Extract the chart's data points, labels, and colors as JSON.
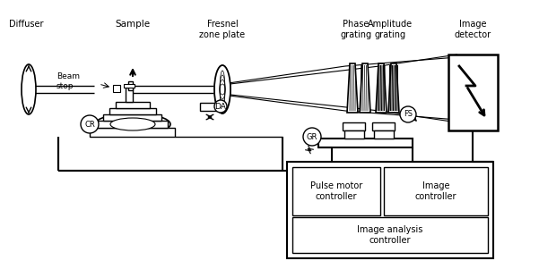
{
  "figsize": [
    6.01,
    3.01
  ],
  "dpi": 100,
  "bg_color": "#f0f0f0",
  "labels": {
    "diffuser": "Diffuser",
    "sample": "Sample",
    "fresnel": "Fresnel\nzone plate",
    "phase": "Phase\ngrating",
    "amplitude": "Amplitude\ngrating",
    "image_detector": "Image\ndetector",
    "beam_stop": "Beam\nstop",
    "cr": "CR",
    "da": "DA",
    "gr": "GR",
    "fs": "FS",
    "pulse_motor": "Pulse motor\ncontroller",
    "image_ctrl": "Image\ncontroller",
    "image_analysis": "Image analysis\ncontroller"
  }
}
